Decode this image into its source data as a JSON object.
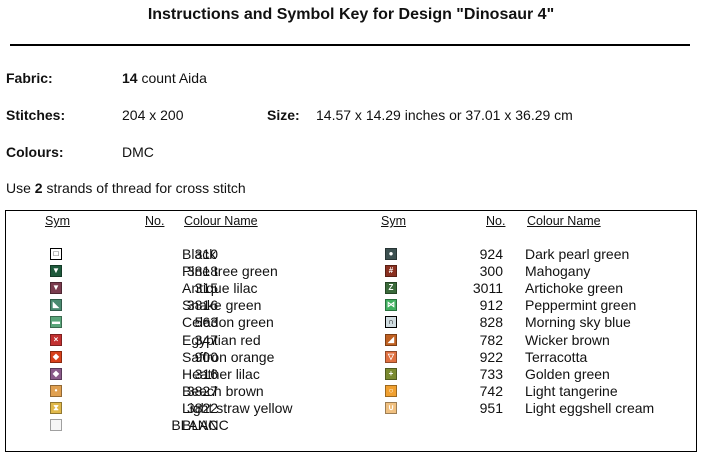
{
  "title": "Instructions and Symbol Key for Design \"Dinosaur 4\"",
  "fabric": {
    "label": "Fabric:",
    "bold": "14",
    "value": "count Aida"
  },
  "stitches": {
    "label": "Stitches:",
    "value": "204 x 200"
  },
  "size": {
    "label": "Size:",
    "value": "14.57 x 14.29 inches or 37.01 x 36.29 cm"
  },
  "colours": {
    "label": "Colours:",
    "value": "DMC"
  },
  "instruction": {
    "before": "Use",
    "bold": "2",
    "after": "strands of thread for cross stitch"
  },
  "table": {
    "headers": [
      "Sym",
      "No.",
      "Colour Name"
    ],
    "left": [
      {
        "symbol": "□",
        "color": "#ffffff",
        "number": "310",
        "name": "Black"
      },
      {
        "symbol": "▼",
        "color": "#1e5a3c",
        "number": "3818",
        "name": "Pine tree green"
      },
      {
        "symbol": "▼",
        "color": "#7a3b4e",
        "number": "315",
        "name": "Antique lilac"
      },
      {
        "symbol": "◣",
        "color": "#4a8a70",
        "number": "3816",
        "name": "Snake green"
      },
      {
        "symbol": "▬",
        "color": "#5aa57a",
        "number": "563",
        "name": "Celadon green"
      },
      {
        "symbol": "×",
        "color": "#c23030",
        "number": "347",
        "name": "Egyptian red"
      },
      {
        "symbol": "◆",
        "color": "#d8401a",
        "number": "900",
        "name": "Saffron orange"
      },
      {
        "symbol": "◆",
        "color": "#8a5a8a",
        "number": "316",
        "name": "Heather lilac"
      },
      {
        "symbol": "•",
        "color": "#e0a050",
        "number": "3827",
        "name": "Beech brown"
      },
      {
        "symbol": "⧗",
        "color": "#e0b84a",
        "number": "3822",
        "name": "Light straw yellow"
      },
      {
        "symbol": "",
        "color": "#f6f6f6",
        "number": "BLANC",
        "name": "BLANC"
      }
    ],
    "right": [
      {
        "symbol": "●",
        "color": "#3c5050",
        "number": "924",
        "name": "Dark pearl green"
      },
      {
        "symbol": "#",
        "color": "#8a3020",
        "number": "300",
        "name": "Mahogany"
      },
      {
        "symbol": "Z",
        "color": "#3a6a3a",
        "number": "3011",
        "name": "Artichoke green"
      },
      {
        "symbol": "⋈",
        "color": "#40b060",
        "number": "912",
        "name": "Peppermint green"
      },
      {
        "symbol": "∩",
        "color": "#d0dce0",
        "number": "828",
        "name": "Morning sky blue"
      },
      {
        "symbol": "◢",
        "color": "#c06020",
        "number": "782",
        "name": "Wicker brown"
      },
      {
        "symbol": "▽",
        "color": "#e07040",
        "number": "922",
        "name": "Terracotta"
      },
      {
        "symbol": "+",
        "color": "#7a8a30",
        "number": "733",
        "name": "Golden green"
      },
      {
        "symbol": "○",
        "color": "#f0a030",
        "number": "742",
        "name": "Light tangerine"
      },
      {
        "symbol": "∪",
        "color": "#f0c080",
        "number": "951",
        "name": "Light eggshell cream"
      }
    ]
  }
}
